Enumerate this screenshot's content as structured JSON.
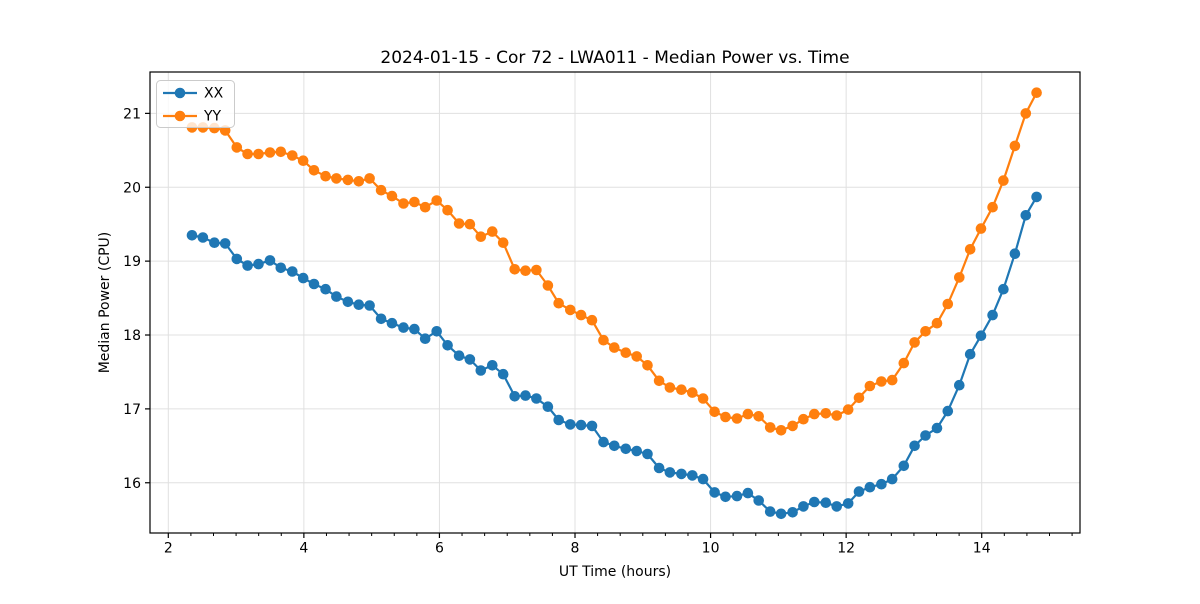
{
  "figure": {
    "background": "#ffffff"
  },
  "chart_data": {
    "type": "line",
    "title": "2024-01-15 - Cor 72 - LWA011 - Median Power vs. Time",
    "xlabel": "UT Time (hours)",
    "ylabel": "Median Power (CPU)",
    "xlim": [
      1.73,
      15.45
    ],
    "ylim": [
      15.32,
      21.56
    ],
    "x_ticks": [
      2,
      4,
      6,
      8,
      10,
      12,
      14
    ],
    "y_ticks": [
      16,
      17,
      18,
      19,
      20,
      21
    ],
    "x_minor_divisions_per_unit": 3,
    "grid": true,
    "grid_color": "#e0e0e0",
    "legend_position": "upper-left",
    "x": [
      2.35,
      2.51,
      2.68,
      2.84,
      3.01,
      3.17,
      3.33,
      3.5,
      3.66,
      3.83,
      3.99,
      4.15,
      4.32,
      4.48,
      4.65,
      4.81,
      4.97,
      5.14,
      5.3,
      5.47,
      5.63,
      5.79,
      5.96,
      6.12,
      6.29,
      6.45,
      6.61,
      6.78,
      6.94,
      7.11,
      7.27,
      7.43,
      7.6,
      7.76,
      7.93,
      8.09,
      8.25,
      8.42,
      8.58,
      8.75,
      8.91,
      9.07,
      9.24,
      9.4,
      9.57,
      9.73,
      9.89,
      10.06,
      10.22,
      10.39,
      10.55,
      10.71,
      10.88,
      11.04,
      11.21,
      11.37,
      11.53,
      11.7,
      11.86,
      12.03,
      12.19,
      12.35,
      12.52,
      12.68,
      12.85,
      13.01,
      13.17,
      13.34,
      13.5,
      13.67,
      13.83,
      13.99,
      14.16,
      14.32,
      14.49,
      14.65,
      14.81
    ],
    "series": [
      {
        "name": "XX",
        "color": "#1f77b4",
        "values": [
          19.35,
          19.32,
          19.25,
          19.24,
          19.03,
          18.94,
          18.96,
          19.01,
          18.91,
          18.86,
          18.77,
          18.69,
          18.62,
          18.52,
          18.45,
          18.41,
          18.4,
          18.22,
          18.16,
          18.1,
          18.08,
          17.95,
          18.05,
          17.86,
          17.72,
          17.67,
          17.52,
          17.59,
          17.47,
          17.17,
          17.18,
          17.14,
          17.03,
          16.85,
          16.79,
          16.78,
          16.77,
          16.55,
          16.5,
          16.46,
          16.43,
          16.39,
          16.2,
          16.14,
          16.12,
          16.1,
          16.05,
          15.87,
          15.81,
          15.82,
          15.86,
          15.76,
          15.61,
          15.58,
          15.6,
          15.68,
          15.74,
          15.73,
          15.68,
          15.72,
          15.88,
          15.94,
          15.98,
          16.05,
          16.23,
          16.5,
          16.64,
          16.74,
          16.97,
          17.32,
          17.74,
          17.99,
          18.27,
          18.62,
          19.1,
          19.62,
          19.87
        ]
      },
      {
        "name": "YY",
        "color": "#ff7f0e",
        "values": [
          20.81,
          20.81,
          20.8,
          20.77,
          20.54,
          20.45,
          20.45,
          20.47,
          20.48,
          20.43,
          20.36,
          20.23,
          20.15,
          20.12,
          20.1,
          20.08,
          20.12,
          19.96,
          19.88,
          19.78,
          19.8,
          19.73,
          19.82,
          19.69,
          19.51,
          19.5,
          19.33,
          19.4,
          19.25,
          18.89,
          18.87,
          18.88,
          18.67,
          18.43,
          18.34,
          18.27,
          18.2,
          17.93,
          17.83,
          17.76,
          17.71,
          17.59,
          17.38,
          17.29,
          17.26,
          17.22,
          17.14,
          16.96,
          16.89,
          16.87,
          16.93,
          16.9,
          16.75,
          16.71,
          16.77,
          16.86,
          16.93,
          16.94,
          16.91,
          16.99,
          17.15,
          17.31,
          17.37,
          17.39,
          17.62,
          17.9,
          18.05,
          18.16,
          18.42,
          18.78,
          19.16,
          19.44,
          19.73,
          20.09,
          20.56,
          21.0,
          21.28
        ]
      }
    ]
  }
}
